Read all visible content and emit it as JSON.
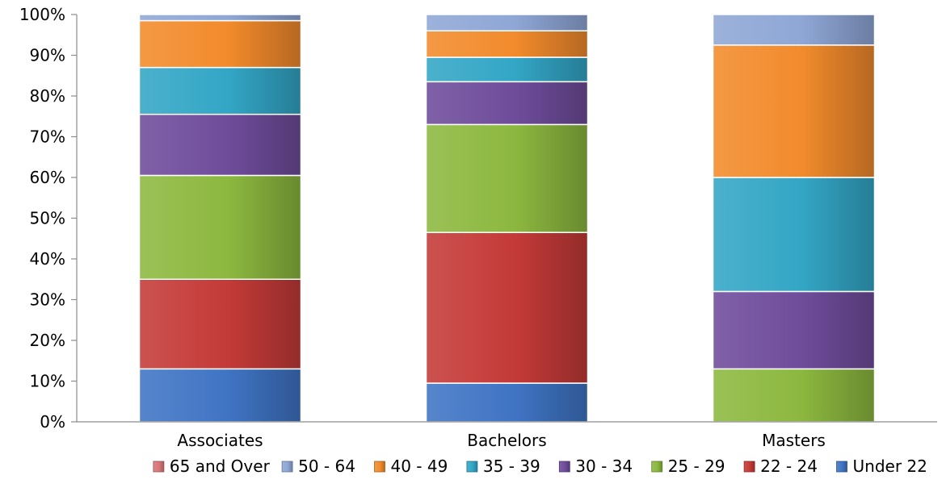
{
  "chart_data": {
    "type": "bar",
    "stacked": true,
    "percent": true,
    "categories": [
      "Associates",
      "Bachelors",
      "Masters"
    ],
    "series": [
      {
        "name": "Under 22",
        "color": "#3f74c4",
        "values": [
          13,
          9.5,
          0
        ]
      },
      {
        "name": "22 - 24",
        "color": "#c43a38",
        "values": [
          22,
          37,
          0
        ]
      },
      {
        "name": "25 - 29",
        "color": "#8cb83f",
        "values": [
          25.5,
          26.5,
          13
        ]
      },
      {
        "name": "30 - 34",
        "color": "#6f4c9b",
        "values": [
          15,
          10.5,
          19
        ]
      },
      {
        "name": "35 - 39",
        "color": "#33a6c6",
        "values": [
          11.5,
          6,
          28
        ]
      },
      {
        "name": "40 - 49",
        "color": "#f28b2c",
        "values": [
          11.5,
          6.5,
          32.5
        ]
      },
      {
        "name": "50 - 64",
        "color": "#8fa7d6",
        "values": [
          1.5,
          4,
          7.5
        ]
      },
      {
        "name": "65 and Over",
        "color": "#d8777a",
        "values": [
          0,
          0,
          0
        ]
      }
    ],
    "y_ticks": [
      "0%",
      "10%",
      "20%",
      "30%",
      "40%",
      "50%",
      "60%",
      "70%",
      "80%",
      "90%",
      "100%"
    ],
    "ylim": [
      0,
      100
    ],
    "legend_order": [
      "65 and Over",
      "50 - 64",
      "40 - 49",
      "35 - 39",
      "30 - 34",
      "25 - 29",
      "22 - 24",
      "Under 22"
    ],
    "legend_position": "bottom",
    "grid": false
  }
}
